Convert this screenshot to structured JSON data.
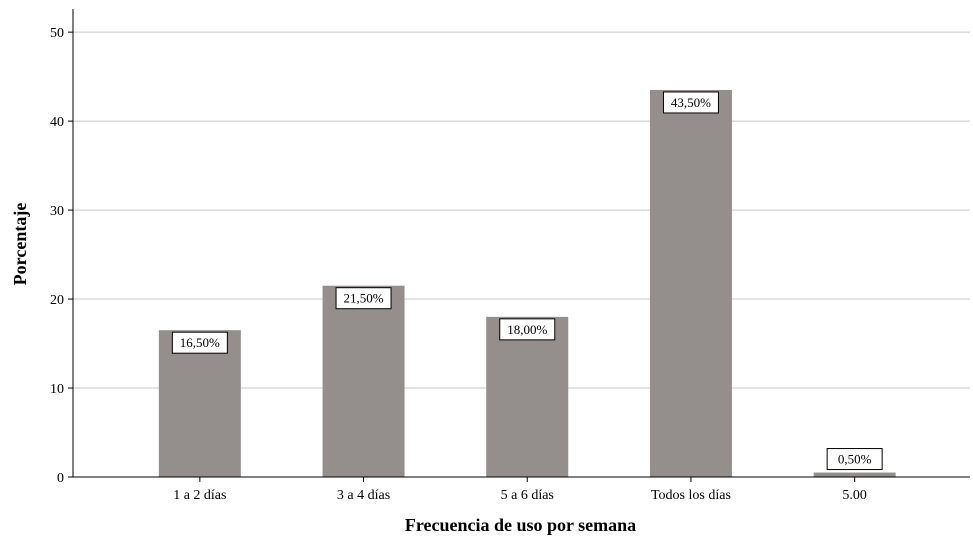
{
  "chart_data": {
    "type": "bar",
    "categories": [
      "1 a 2 días",
      "3 a 4 días",
      "5 a 6 días",
      "Todos los días",
      "5.00"
    ],
    "values": [
      16.5,
      21.5,
      18.0,
      43.5,
      0.5
    ],
    "data_labels": [
      "16,50%",
      "21,50%",
      "18,00%",
      "43,50%",
      "0,50%"
    ],
    "xlabel": "Frecuencia de uso por semana",
    "ylabel": "Porcentaje",
    "ylim": [
      0,
      50
    ],
    "yticks": [
      "0",
      "10",
      "20",
      "30",
      "40",
      "50"
    ],
    "ytick_values": [
      0,
      10,
      20,
      30,
      40,
      50
    ],
    "grid": true,
    "bar_color": "#948f8d",
    "grid_color": "#c8c8c8"
  }
}
